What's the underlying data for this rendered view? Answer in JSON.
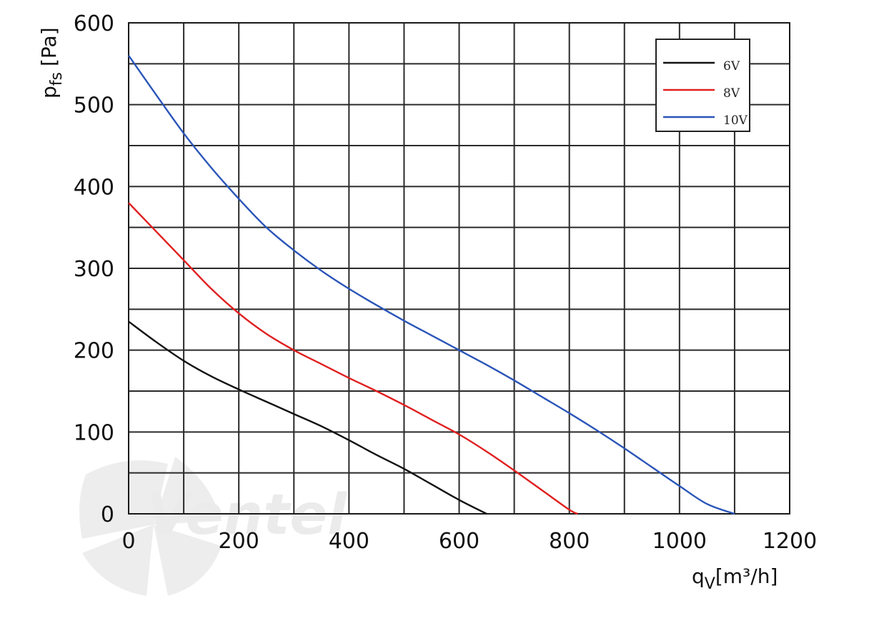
{
  "chart_data": {
    "type": "line",
    "xlabel": {
      "main": "q",
      "sub": "V",
      "unit": "[m³/h]"
    },
    "ylabel": {
      "main": "p",
      "sub": "fs",
      "unit": "[Pa]"
    },
    "xlim": [
      0,
      1200
    ],
    "ylim": [
      0,
      600
    ],
    "x_ticks": [
      0,
      200,
      400,
      600,
      800,
      1000,
      1200
    ],
    "y_ticks": [
      0,
      100,
      200,
      300,
      400,
      500,
      600
    ],
    "x_tick_labels": [
      "0",
      "200",
      "400",
      "600",
      "800",
      "1000",
      "1200"
    ],
    "y_tick_labels": [
      "0",
      "100",
      "200",
      "300",
      "400",
      "500",
      "600"
    ],
    "grid": true,
    "grid_step": {
      "x": 100,
      "y": 50
    },
    "legend_position": "top-right",
    "series": [
      {
        "name": "6V",
        "color": "#111111",
        "points": [
          [
            0,
            235
          ],
          [
            50,
            210
          ],
          [
            100,
            187
          ],
          [
            150,
            168
          ],
          [
            200,
            152
          ],
          [
            250,
            137
          ],
          [
            300,
            122
          ],
          [
            350,
            107
          ],
          [
            400,
            90
          ],
          [
            450,
            72
          ],
          [
            500,
            55
          ],
          [
            550,
            36
          ],
          [
            600,
            17
          ],
          [
            650,
            0
          ]
        ]
      },
      {
        "name": "8V",
        "color": "#e02020",
        "points": [
          [
            0,
            380
          ],
          [
            50,
            345
          ],
          [
            100,
            310
          ],
          [
            150,
            275
          ],
          [
            200,
            245
          ],
          [
            250,
            220
          ],
          [
            300,
            200
          ],
          [
            350,
            183
          ],
          [
            400,
            166
          ],
          [
            450,
            150
          ],
          [
            500,
            133
          ],
          [
            550,
            115
          ],
          [
            600,
            97
          ],
          [
            650,
            76
          ],
          [
            700,
            53
          ],
          [
            750,
            29
          ],
          [
            800,
            5
          ],
          [
            815,
            0
          ]
        ]
      },
      {
        "name": "10V",
        "color": "#2a55b8",
        "points": [
          [
            0,
            560
          ],
          [
            50,
            512
          ],
          [
            100,
            465
          ],
          [
            150,
            423
          ],
          [
            200,
            385
          ],
          [
            250,
            350
          ],
          [
            300,
            322
          ],
          [
            350,
            297
          ],
          [
            400,
            275
          ],
          [
            450,
            255
          ],
          [
            500,
            236
          ],
          [
            550,
            218
          ],
          [
            600,
            200
          ],
          [
            650,
            182
          ],
          [
            700,
            163
          ],
          [
            750,
            143
          ],
          [
            800,
            123
          ],
          [
            850,
            102
          ],
          [
            900,
            80
          ],
          [
            950,
            57
          ],
          [
            1000,
            34
          ],
          [
            1050,
            12
          ],
          [
            1100,
            0
          ]
        ]
      }
    ]
  },
  "watermark": {
    "text": "Ventel",
    "icon": "fan-icon"
  }
}
